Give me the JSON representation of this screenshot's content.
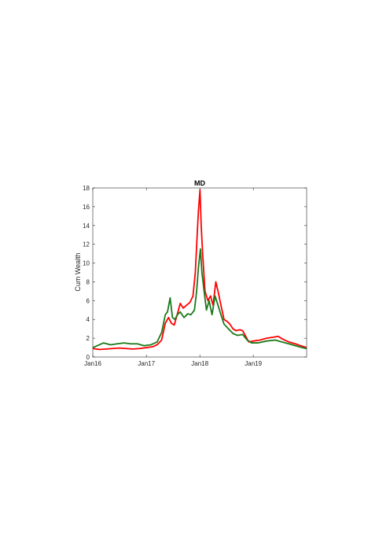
{
  "chart_data": {
    "type": "line",
    "title": "MD",
    "xlabel": "",
    "ylabel": "Cum Wealth",
    "x_tick_labels": [
      "Jan16",
      "Jan17",
      "Jan18",
      "Jan19"
    ],
    "x_ticks": [
      "2016-01-01",
      "2017-01-01",
      "2018-01-01",
      "2019-01-01"
    ],
    "xlim": [
      "2016-01-01",
      "2019-12-31"
    ],
    "ylim": [
      0,
      18
    ],
    "y_ticks": [
      0,
      2,
      4,
      6,
      8,
      10,
      12,
      14,
      16,
      18
    ],
    "grid": false,
    "legend": "none",
    "series": [
      {
        "color": "#ff0000",
        "points": [
          [
            "2016-01-01",
            0.9
          ],
          [
            "2016-02-15",
            0.8
          ],
          [
            "2016-04-01",
            0.85
          ],
          [
            "2016-05-15",
            0.9
          ],
          [
            "2016-07-01",
            0.95
          ],
          [
            "2016-08-15",
            0.9
          ],
          [
            "2016-10-01",
            0.85
          ],
          [
            "2016-11-15",
            0.9
          ],
          [
            "2017-01-01",
            1.0
          ],
          [
            "2017-02-15",
            1.1
          ],
          [
            "2017-03-15",
            1.3
          ],
          [
            "2017-04-15",
            1.8
          ],
          [
            "2017-05-10",
            3.6
          ],
          [
            "2017-06-01",
            4.2
          ],
          [
            "2017-06-20",
            3.6
          ],
          [
            "2017-07-10",
            3.4
          ],
          [
            "2017-08-01",
            4.6
          ],
          [
            "2017-08-20",
            5.7
          ],
          [
            "2017-09-10",
            5.2
          ],
          [
            "2017-10-01",
            5.5
          ],
          [
            "2017-10-25",
            5.8
          ],
          [
            "2017-11-15",
            6.5
          ],
          [
            "2017-12-01",
            9.0
          ],
          [
            "2017-12-12",
            12.5
          ],
          [
            "2017-12-22",
            15.5
          ],
          [
            "2018-01-02",
            17.8
          ],
          [
            "2018-01-10",
            14.0
          ],
          [
            "2018-01-20",
            11.0
          ],
          [
            "2018-02-05",
            7.0
          ],
          [
            "2018-02-25",
            6.0
          ],
          [
            "2018-03-15",
            6.5
          ],
          [
            "2018-04-01",
            5.5
          ],
          [
            "2018-04-20",
            8.0
          ],
          [
            "2018-05-05",
            7.0
          ],
          [
            "2018-05-25",
            5.5
          ],
          [
            "2018-06-15",
            4.0
          ],
          [
            "2018-07-05",
            3.8
          ],
          [
            "2018-07-25",
            3.5
          ],
          [
            "2018-08-15",
            3.0
          ],
          [
            "2018-09-05",
            2.8
          ],
          [
            "2018-10-01",
            2.9
          ],
          [
            "2018-10-20",
            2.8
          ],
          [
            "2018-11-10",
            2.2
          ],
          [
            "2018-12-01",
            1.6
          ],
          [
            "2019-01-01",
            1.7
          ],
          [
            "2019-02-15",
            1.8
          ],
          [
            "2019-04-01",
            2.0
          ],
          [
            "2019-05-15",
            2.1
          ],
          [
            "2019-06-20",
            2.2
          ],
          [
            "2019-07-20",
            1.9
          ],
          [
            "2019-09-01",
            1.6
          ],
          [
            "2019-10-15",
            1.4
          ],
          [
            "2019-11-20",
            1.2
          ],
          [
            "2019-12-31",
            1.0
          ]
        ]
      },
      {
        "color": "#1a7a1a",
        "points": [
          [
            "2016-01-01",
            1.0
          ],
          [
            "2016-02-15",
            1.3
          ],
          [
            "2016-03-15",
            1.5
          ],
          [
            "2016-05-01",
            1.3
          ],
          [
            "2016-06-15",
            1.4
          ],
          [
            "2016-08-01",
            1.5
          ],
          [
            "2016-09-15",
            1.4
          ],
          [
            "2016-11-01",
            1.4
          ],
          [
            "2016-12-15",
            1.2
          ],
          [
            "2017-02-01",
            1.3
          ],
          [
            "2017-03-15",
            1.6
          ],
          [
            "2017-04-15",
            2.6
          ],
          [
            "2017-05-10",
            4.5
          ],
          [
            "2017-05-25",
            4.8
          ],
          [
            "2017-06-12",
            6.3
          ],
          [
            "2017-06-28",
            4.2
          ],
          [
            "2017-07-15",
            4.0
          ],
          [
            "2017-08-01",
            4.5
          ],
          [
            "2017-08-20",
            4.8
          ],
          [
            "2017-09-15",
            4.2
          ],
          [
            "2017-10-10",
            4.6
          ],
          [
            "2017-11-01",
            4.5
          ],
          [
            "2017-11-25",
            5.0
          ],
          [
            "2017-12-10",
            7.0
          ],
          [
            "2017-12-22",
            9.5
          ],
          [
            "2018-01-05",
            11.5
          ],
          [
            "2018-01-15",
            9.0
          ],
          [
            "2018-01-30",
            7.0
          ],
          [
            "2018-02-15",
            5.0
          ],
          [
            "2018-03-05",
            6.0
          ],
          [
            "2018-03-25",
            4.5
          ],
          [
            "2018-04-15",
            6.5
          ],
          [
            "2018-05-05",
            5.5
          ],
          [
            "2018-05-25",
            4.5
          ],
          [
            "2018-06-15",
            3.5
          ],
          [
            "2018-07-15",
            3.0
          ],
          [
            "2018-08-15",
            2.5
          ],
          [
            "2018-09-15",
            2.3
          ],
          [
            "2018-10-20",
            2.4
          ],
          [
            "2018-11-20",
            1.8
          ],
          [
            "2018-12-20",
            1.5
          ],
          [
            "2019-02-01",
            1.5
          ],
          [
            "2019-04-01",
            1.7
          ],
          [
            "2019-06-01",
            1.8
          ],
          [
            "2019-07-15",
            1.6
          ],
          [
            "2019-09-01",
            1.4
          ],
          [
            "2019-10-15",
            1.2
          ],
          [
            "2019-12-01",
            1.0
          ],
          [
            "2019-12-31",
            0.9
          ]
        ]
      }
    ]
  }
}
